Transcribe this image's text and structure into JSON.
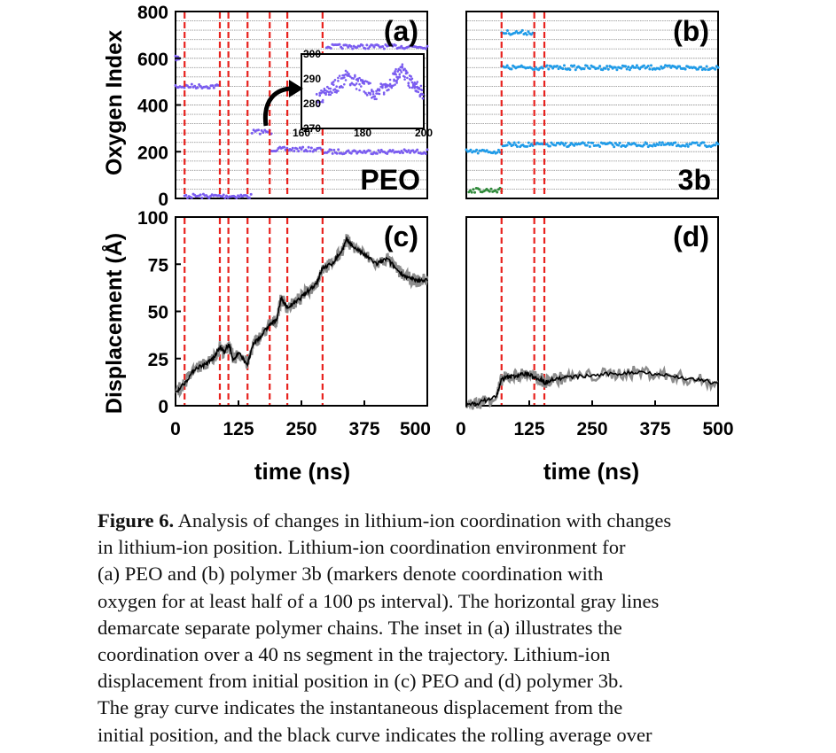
{
  "figure": {
    "panels": [
      {
        "letter": "(a)",
        "label": "PEO"
      },
      {
        "letter": "(b)",
        "label": "3b"
      },
      {
        "letter": "(c)",
        "label": ""
      },
      {
        "letter": "(d)",
        "label": ""
      }
    ],
    "y_top_label": "Oxygen Index",
    "y_bottom_label": "Displacement (Å)",
    "x_label": "time (ns)",
    "colors": {
      "frame": "#000000",
      "event_line": "#e8221e",
      "gridline": "#9a9a9a",
      "peo_markers": "#7a5cf0",
      "3b_markers": "#1f9be8",
      "3b_alt_markers": "#2f8a3a",
      "raw_curve": "#8c8c8c",
      "avg_curve": "#000000"
    }
  },
  "chart_data": [
    {
      "panel": "(a)",
      "type": "scatter",
      "xlim": [
        0,
        500
      ],
      "ylim": [
        0,
        800
      ],
      "yticks": [
        0,
        200,
        400,
        600,
        800
      ],
      "xticks": [
        0,
        125,
        250,
        375,
        500
      ],
      "event_times": [
        18,
        88,
        105,
        143,
        187,
        222,
        292
      ],
      "segments": [
        {
          "x": [
            0,
            8
          ],
          "y": 600
        },
        {
          "x": [
            0,
            85
          ],
          "y": 480
        },
        {
          "x": [
            18,
            150
          ],
          "y": 10
        },
        {
          "x": [
            152,
            190
          ],
          "y": 285
        },
        {
          "x": [
            190,
            290
          ],
          "y": 210
        },
        {
          "x": [
            292,
            500
          ],
          "y": 200
        },
        {
          "x": [
            300,
            500
          ],
          "y": 650
        }
      ],
      "inset": {
        "xlim": [
          160,
          200
        ],
        "ylim": [
          270,
          300
        ],
        "xticks": [
          "160",
          "180",
          "200"
        ],
        "yticks": [
          "270",
          "280",
          "290",
          "300"
        ]
      }
    },
    {
      "panel": "(b)",
      "type": "scatter",
      "xlim": [
        0,
        500
      ],
      "ylim": [
        0,
        800
      ],
      "event_times": [
        70,
        135,
        155
      ],
      "segments": [
        {
          "x": [
            0,
            70
          ],
          "y": 200
        },
        {
          "x": [
            5,
            70
          ],
          "y": 35
        },
        {
          "x": [
            70,
            135
          ],
          "y": 710
        },
        {
          "x": [
            70,
            500
          ],
          "y": 560
        },
        {
          "x": [
            70,
            500
          ],
          "y": 230
        }
      ]
    },
    {
      "panel": "(c)",
      "type": "line",
      "xlim": [
        0,
        500
      ],
      "ylim": [
        0,
        100
      ],
      "yticks": [
        0,
        25,
        50,
        75,
        100
      ],
      "xticks": [
        0,
        125,
        250,
        375,
        500
      ],
      "event_times": [
        18,
        88,
        105,
        143,
        187,
        222,
        292
      ],
      "x": [
        0,
        18,
        40,
        60,
        75,
        88,
        98,
        105,
        115,
        125,
        143,
        155,
        170,
        187,
        200,
        210,
        222,
        240,
        260,
        280,
        292,
        310,
        330,
        340,
        350,
        375,
        400,
        420,
        440,
        460,
        480,
        500
      ],
      "avg": [
        7,
        12,
        20,
        22,
        25,
        31,
        28,
        33,
        24,
        28,
        22,
        33,
        37,
        43,
        45,
        57,
        52,
        55,
        60,
        65,
        73,
        75,
        82,
        88,
        85,
        80,
        75,
        78,
        72,
        68,
        66,
        67
      ]
    },
    {
      "panel": "(d)",
      "type": "line",
      "xlim": [
        0,
        500
      ],
      "ylim": [
        0,
        100
      ],
      "xticks": [
        0,
        125,
        250,
        375,
        500
      ],
      "event_times": [
        70,
        135,
        155
      ],
      "x": [
        0,
        30,
        60,
        70,
        80,
        100,
        120,
        135,
        150,
        155,
        170,
        200,
        250,
        300,
        350,
        400,
        450,
        500
      ],
      "avg": [
        0,
        2,
        5,
        14,
        15,
        16,
        17,
        15,
        14,
        12,
        14,
        15,
        16,
        17,
        18,
        16,
        14,
        12
      ]
    }
  ],
  "caption": {
    "label": "Figure 6.",
    "lines": [
      "Analysis of changes in lithium-ion coordination with changes",
      "in lithium-ion position. Lithium-ion coordination environment for",
      "(a) PEO and (b) polymer 3b (markers denote coordination with",
      "oxygen for at least half of a 100 ps interval). The horizontal gray lines",
      "demarcate separate polymer chains. The inset in (a) illustrates the",
      "coordination over a 40 ns segment in the trajectory. Lithium-ion",
      "displacement from initial position in (c) PEO and (d) polymer 3b.",
      "The gray curve indicates the instantaneous displacement from the",
      "initial position, and the black curve indicates the rolling average over"
    ]
  }
}
